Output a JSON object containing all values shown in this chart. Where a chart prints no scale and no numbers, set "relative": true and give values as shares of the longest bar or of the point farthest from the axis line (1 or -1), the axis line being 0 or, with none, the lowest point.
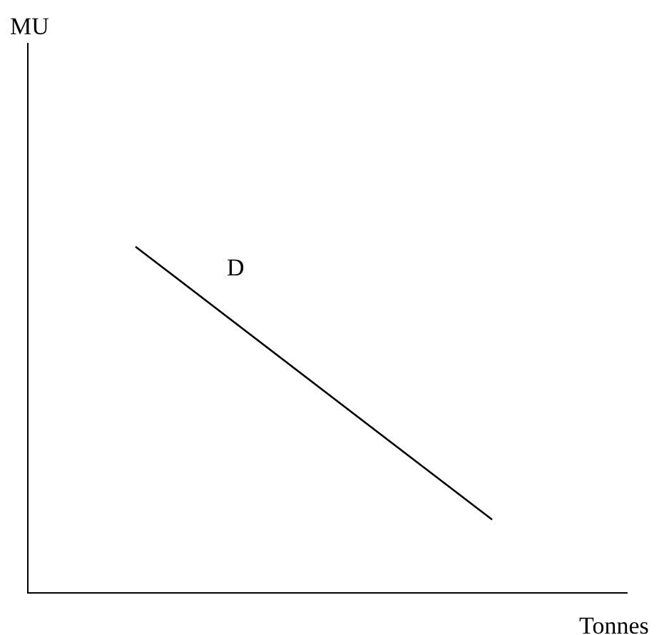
{
  "chart_data": {
    "type": "line",
    "xlabel": "Tonnes",
    "annotations": [
      "MU",
      "D"
    ],
    "categories": [
      null,
      null
    ],
    "series": [
      {
        "color": "#000000",
        "values": [
          1,
          0.21
        ]
      }
    ],
    "relative": true,
    "marker": "none",
    "line_style": "solid"
  }
}
